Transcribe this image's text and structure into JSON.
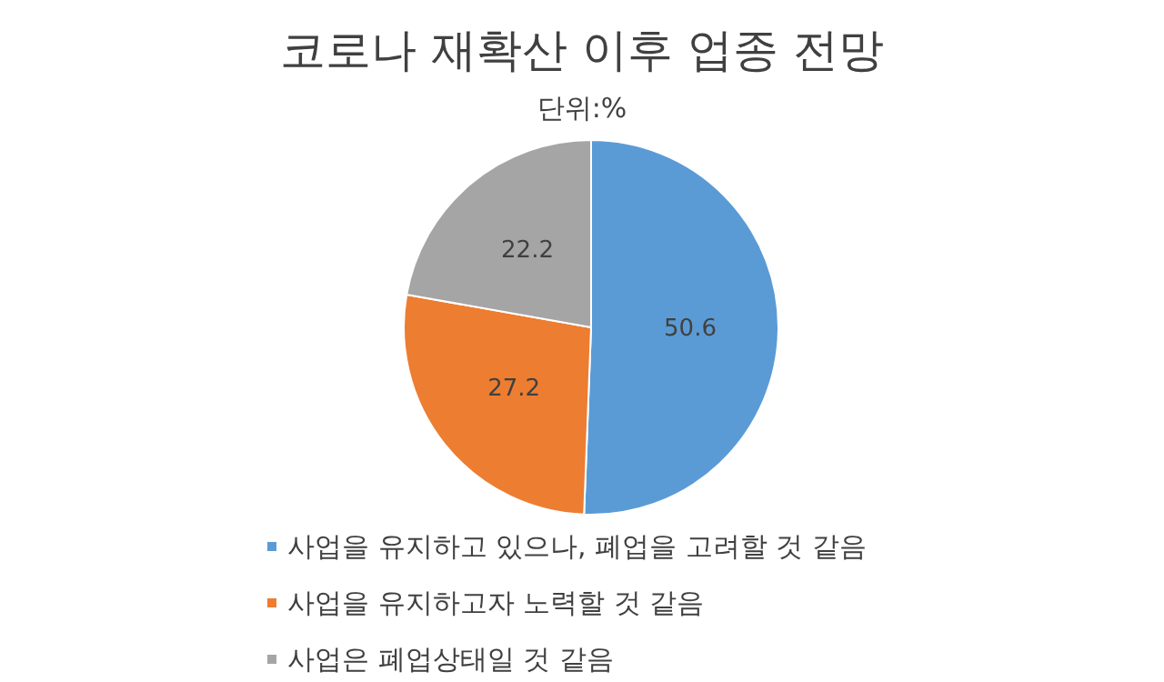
{
  "chart_data": {
    "type": "pie",
    "title": "코로나 재확산 이후 업종 전망",
    "subtitle": "단위:%",
    "categories": [
      "사업을 유지하고 있으나, 폐업을 고려할 것 같음",
      "사업을 유지하고자 노력할 것 같음",
      "사업은 폐업상태일 것 같음"
    ],
    "values": [
      50.6,
      27.2,
      22.2
    ],
    "colors": [
      "#5b9bd5",
      "#ed7d31",
      "#a5a5a5"
    ],
    "data_labels": true,
    "legend": "bottom"
  }
}
